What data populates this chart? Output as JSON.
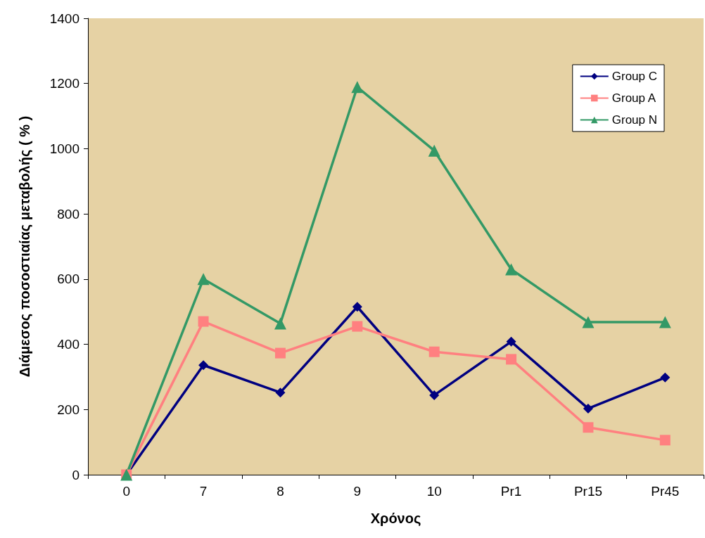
{
  "chart_data": {
    "type": "line",
    "xlabel": "Χρόνος",
    "ylabel": "Διάμεσος ποσοστιαίας μεταβολής ( % )",
    "categories": [
      "0",
      "7",
      "8",
      "9",
      "10",
      "Pr1",
      "Pr15",
      "Pr45"
    ],
    "series": [
      {
        "name": "Group C",
        "color": "#000080",
        "marker": "diamond",
        "values": [
          0,
          336,
          252,
          515,
          244,
          408,
          203,
          298
        ]
      },
      {
        "name": "Group A",
        "color": "#ff8080",
        "marker": "square",
        "values": [
          0,
          470,
          373,
          455,
          377,
          354,
          145,
          106
        ]
      },
      {
        "name": "Group N",
        "color": "#339966",
        "marker": "triangle",
        "values": [
          0,
          600,
          464,
          1189,
          994,
          630,
          468,
          468
        ]
      }
    ],
    "ylim": [
      0,
      1400
    ],
    "yticks": [
      0,
      200,
      400,
      600,
      800,
      1000,
      1200,
      1400
    ],
    "grid": false,
    "legend": "top right",
    "line_style": "solid"
  }
}
